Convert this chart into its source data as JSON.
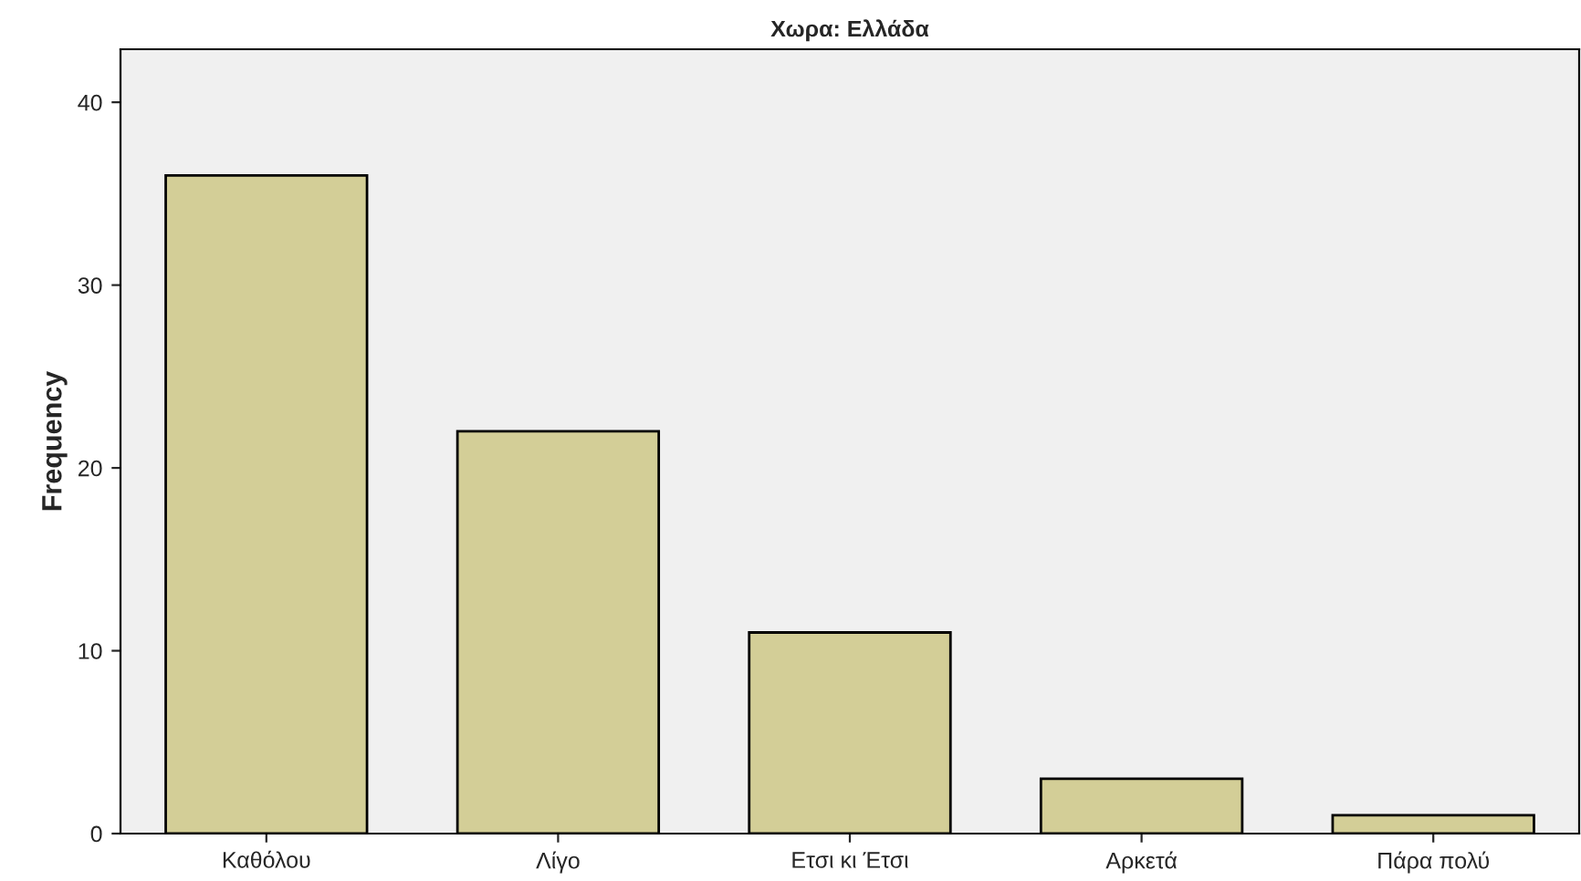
{
  "chart_data": {
    "type": "bar",
    "title": "Χωρα: Ελλάδα",
    "ylabel": "Frequency",
    "categories": [
      "Καθόλου",
      "Λίγο",
      "Ετσι κι Έτσι",
      "Αρκετά",
      "Πάρα πολύ"
    ],
    "values": [
      36,
      22,
      11,
      3,
      1
    ],
    "color": "#d3ce97",
    "ylim": [
      0,
      42.9
    ],
    "yticks": [
      0,
      10,
      20,
      30,
      40
    ],
    "grid": false
  }
}
